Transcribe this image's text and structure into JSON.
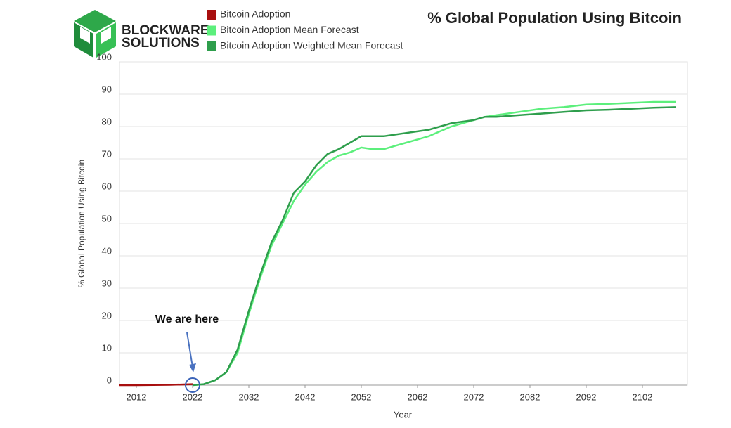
{
  "logo": [
    "BLOCKWARE",
    "SOLUTIONS"
  ],
  "chart_data": {
    "type": "line",
    "title": "% Global Population Using Bitcoin",
    "x_label": "Year",
    "y_label": "% Global Population Using Bitcoin",
    "annotation": "We are here",
    "xlim": [
      2009,
      2110
    ],
    "xticks": [
      2012,
      2022,
      2032,
      2042,
      2052,
      2062,
      2072,
      2082,
      2092,
      2102
    ],
    "ylim": [
      0,
      100
    ],
    "yticks": [
      0,
      10,
      20,
      30,
      40,
      50,
      60,
      70,
      80,
      90,
      100
    ],
    "grid": true,
    "series": [
      {
        "name": "Bitcoin Adoption",
        "color": "#a80f0f",
        "x": [
          2009,
          2012,
          2015,
          2018,
          2020,
          2022
        ],
        "values": [
          0,
          0,
          0.05,
          0.1,
          0.2,
          0.3
        ]
      },
      {
        "name": "Bitcoin Adoption Mean Forecast",
        "color": "#5cef7c",
        "x": [
          2022,
          2024,
          2026,
          2028,
          2030,
          2032,
          2034,
          2036,
          2038,
          2040,
          2042,
          2044,
          2046,
          2048,
          2050,
          2052,
          2054,
          2056,
          2058,
          2060,
          2062,
          2064,
          2066,
          2068,
          2070,
          2072,
          2074,
          2076,
          2080,
          2084,
          2088,
          2092,
          2096,
          2100,
          2104,
          2108
        ],
        "values": [
          0,
          0.3,
          1.5,
          4,
          10,
          22,
          33,
          43,
          50,
          57,
          62,
          66,
          69,
          71,
          72,
          73.5,
          73,
          73,
          74,
          75,
          76,
          77,
          78.5,
          80,
          81,
          82,
          83,
          83.5,
          84.5,
          85.5,
          86,
          86.8,
          87,
          87.3,
          87.6,
          87.6
        ]
      },
      {
        "name": "Bitcoin Adoption Weighted Mean Forecast",
        "color": "#2e9e4c",
        "x": [
          2022,
          2024,
          2026,
          2028,
          2030,
          2032,
          2034,
          2036,
          2038,
          2040,
          2042,
          2044,
          2046,
          2048,
          2050,
          2052,
          2054,
          2056,
          2058,
          2060,
          2062,
          2064,
          2066,
          2068,
          2070,
          2072,
          2074,
          2076,
          2080,
          2084,
          2088,
          2092,
          2096,
          2100,
          2104,
          2108
        ],
        "values": [
          0,
          0.3,
          1.5,
          4,
          11,
          23,
          34,
          44,
          51,
          59.5,
          63,
          68,
          71.5,
          73,
          75,
          77,
          77,
          77,
          77.5,
          78,
          78.5,
          79,
          80,
          81,
          81.5,
          82,
          83,
          83,
          83.5,
          84,
          84.5,
          85,
          85.2,
          85.5,
          85.8,
          86
        ]
      }
    ]
  }
}
